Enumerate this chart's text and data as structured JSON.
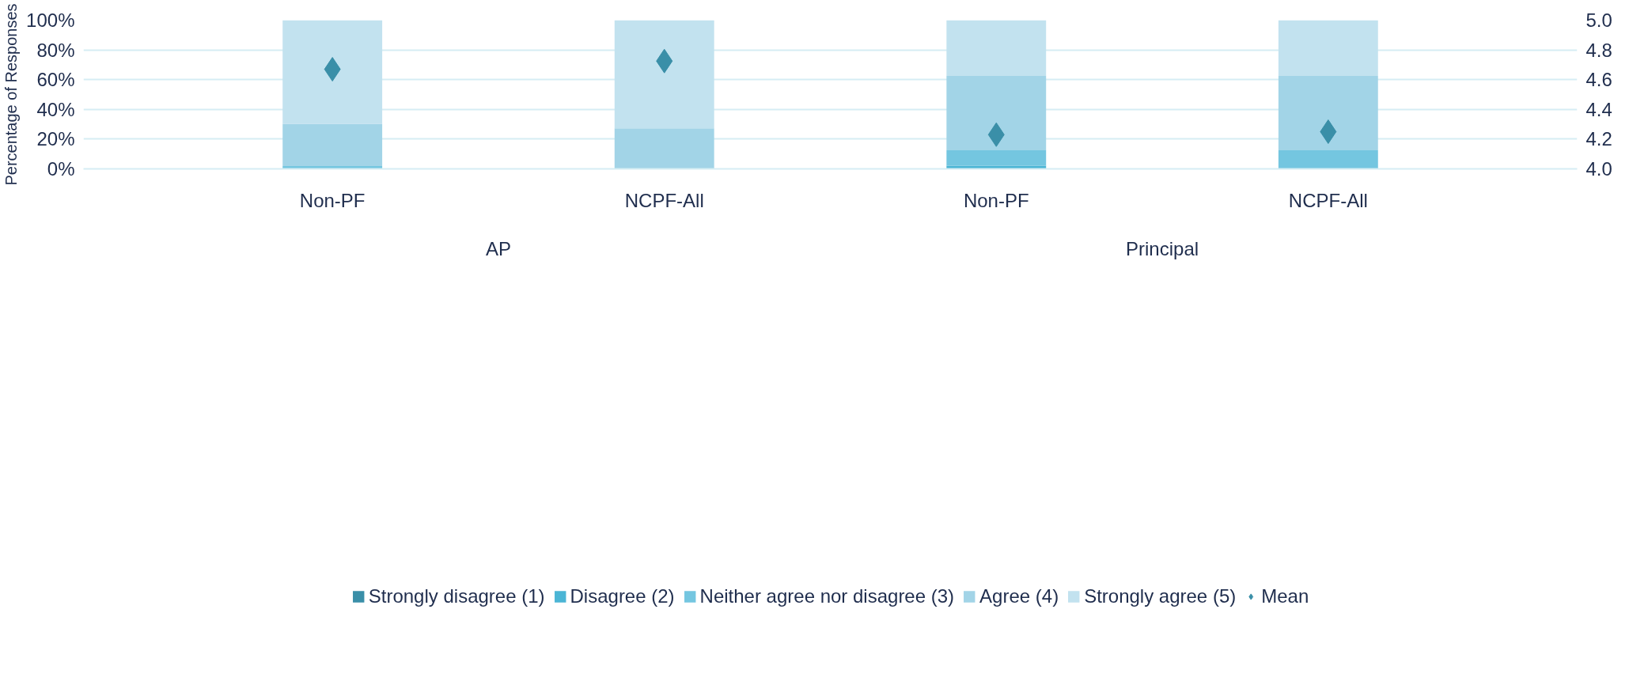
{
  "chart_data": {
    "type": "bar",
    "stacked": true,
    "ylabel": "Percentage of Responses",
    "categories": [
      "Non-PF",
      "NCPF-All",
      "Non-PF",
      "NCPF-All"
    ],
    "annotations": [
      "AP",
      "Principal"
    ],
    "series": [
      {
        "name": "Strongly disagree (1)",
        "color": "#3a8fa8",
        "values": [
          0,
          0,
          0,
          0
        ]
      },
      {
        "name": "Disagree (2)",
        "color": "#4bb5d5",
        "values": [
          0,
          0,
          2,
          0
        ]
      },
      {
        "name": "Neither agree nor disagree (3)",
        "color": "#74c6e0",
        "values": [
          1.8,
          0,
          10.5,
          12.5
        ]
      },
      {
        "name": "Agree (4)",
        "color": "#a2d4e7",
        "values": [
          28.5,
          27.3,
          50,
          50
        ]
      },
      {
        "name": "Strongly agree (5)",
        "color": "#c2e2ef",
        "values": [
          69.7,
          72.7,
          37.5,
          37.5
        ]
      },
      {
        "name": "Mean",
        "type": "scatter",
        "axis": "y2",
        "marker": "diamond",
        "color": "#3a8fa8",
        "values": [
          4.67,
          4.725,
          4.23,
          4.25
        ]
      }
    ],
    "ylim": [
      0,
      100
    ],
    "yticks": [
      {
        "value": 0,
        "label": "0%"
      },
      {
        "value": 20,
        "label": "20%"
      },
      {
        "value": 40,
        "label": "40%"
      },
      {
        "value": 60,
        "label": "60%"
      },
      {
        "value": 80,
        "label": "80%"
      },
      {
        "value": 100,
        "label": "100%"
      }
    ],
    "y2lim": [
      4,
      5
    ],
    "y2ticks": [
      {
        "value": 4,
        "label": "4.0"
      },
      {
        "value": 4.2,
        "label": "4.2"
      },
      {
        "value": 4.4,
        "label": "4.4"
      },
      {
        "value": 4.6,
        "label": "4.6"
      },
      {
        "value": 4.8,
        "label": "4.8"
      },
      {
        "value": 5,
        "label": "5.0"
      }
    ],
    "grid": "y",
    "legend": "bottom"
  }
}
